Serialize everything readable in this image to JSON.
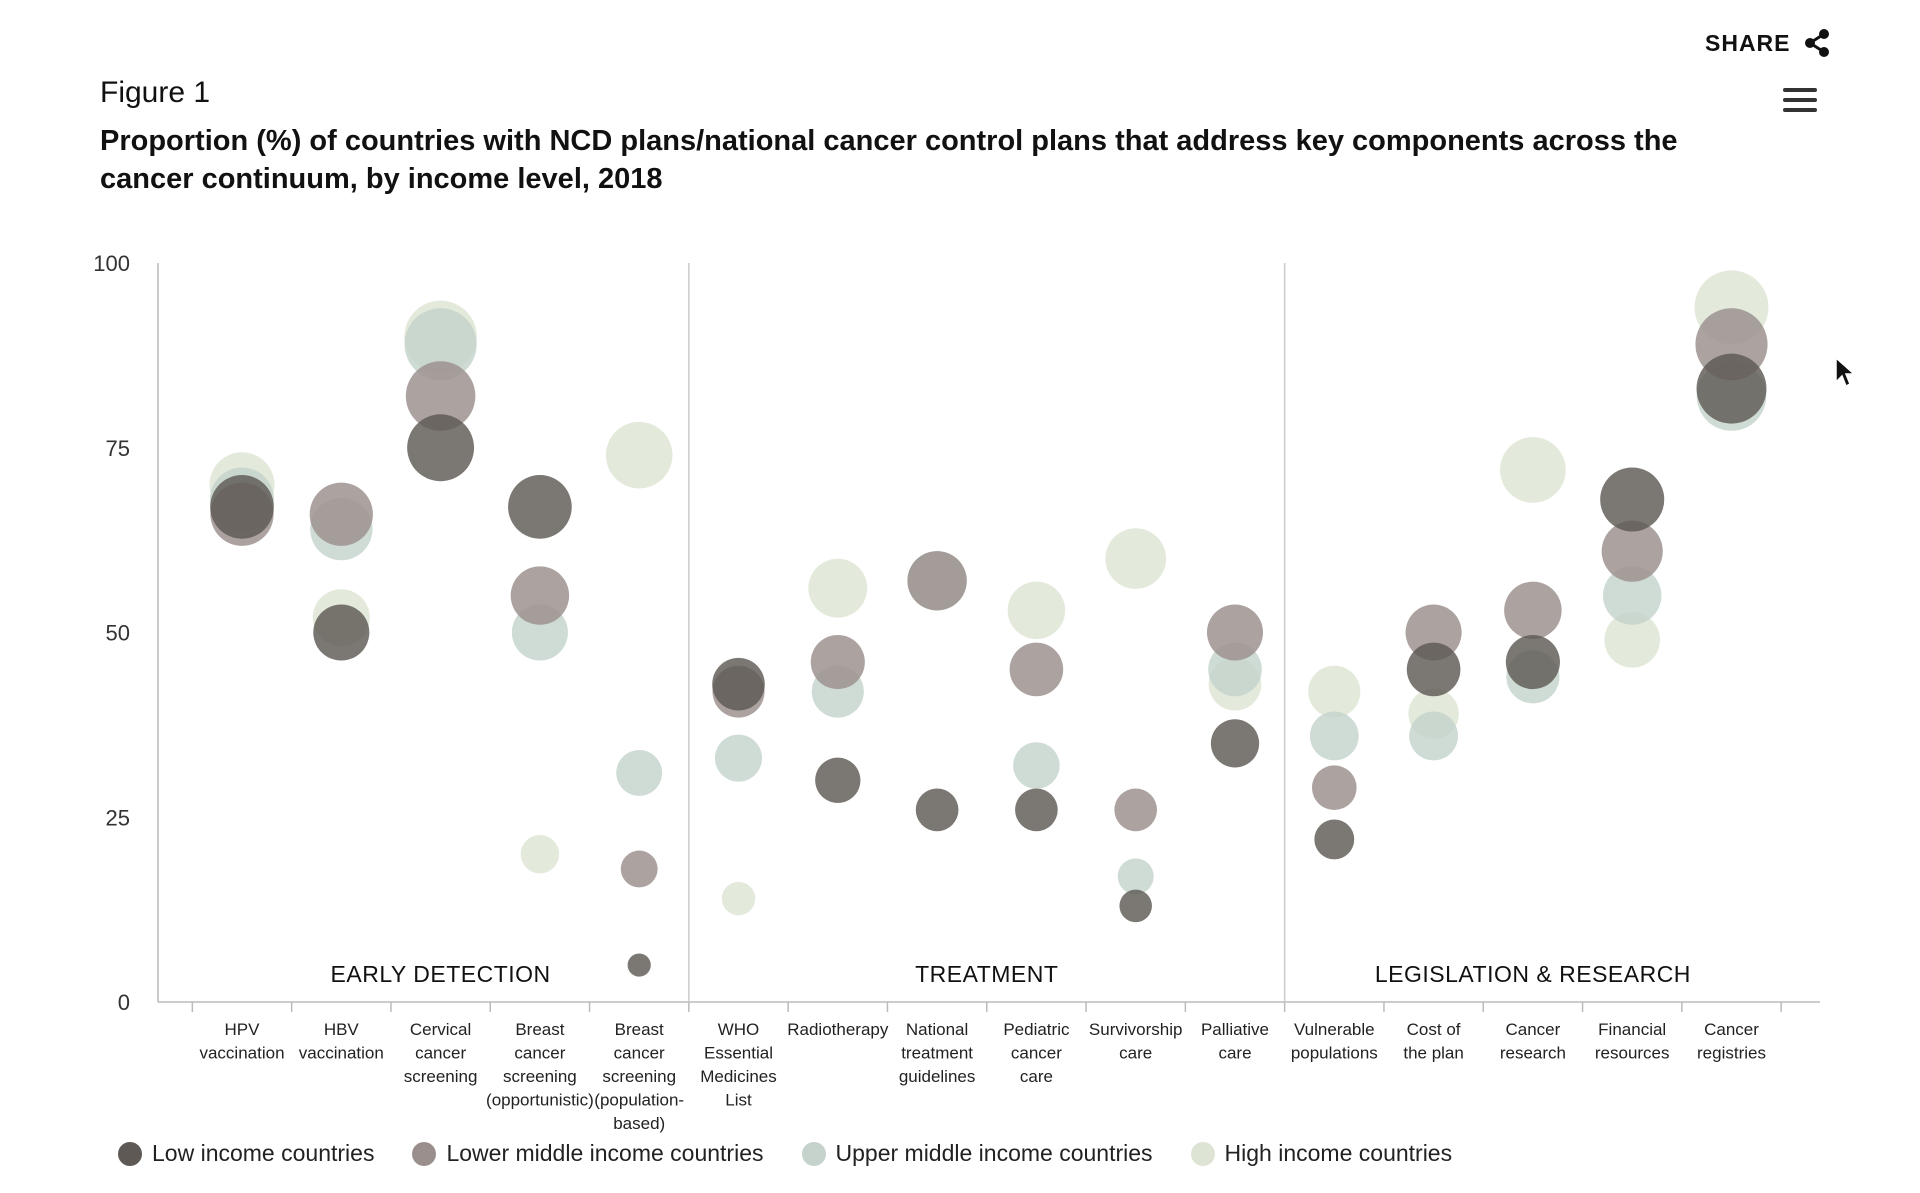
{
  "share": {
    "label": "SHARE",
    "icon": "share-icon"
  },
  "menu": {
    "icon": "hamburger-menu-icon"
  },
  "figure_label": "Figure 1",
  "colors": {
    "low": "#5e5954",
    "lower_middle": "#9a8f8c",
    "upper_middle": "#c5d3cc",
    "high": "#dde4d3"
  },
  "chart_data": {
    "type": "scatter",
    "title": "Proportion (%) of countries with NCD plans/national cancer control plans that address key components across the cancer continuum, by income level, 2018",
    "ylim": [
      0,
      100
    ],
    "yticks": [
      0,
      25,
      50,
      75,
      100
    ],
    "categories": [
      "HPV vaccination",
      "HBV vaccination",
      "Cervical cancer screening",
      "Breast cancer screening (opportunistic)",
      "Breast cancer screening (population-based)",
      "WHO Essential Medicines List",
      "Radiotherapy",
      "National treatment guidelines",
      "Pediatric cancer care",
      "Survivorship care",
      "Palliative care",
      "Vulnerable populations",
      "Cost of the plan",
      "Cancer research",
      "Financial resources",
      "Cancer registries"
    ],
    "category_label_lines": [
      [
        "HPV",
        "vaccination"
      ],
      [
        "HBV",
        "vaccination"
      ],
      [
        "Cervical",
        "cancer",
        "screening"
      ],
      [
        "Breast",
        "cancer",
        "screening",
        "(opportunistic)"
      ],
      [
        "Breast",
        "cancer",
        "screening",
        "(population-",
        "based)"
      ],
      [
        "WHO",
        "Essential",
        "Medicines",
        "List"
      ],
      [
        "Radiotherapy"
      ],
      [
        "National",
        "treatment",
        "guidelines"
      ],
      [
        "Pediatric",
        "cancer",
        "care"
      ],
      [
        "Survivorship",
        "care"
      ],
      [
        "Palliative",
        "care"
      ],
      [
        "Vulnerable",
        "populations"
      ],
      [
        "Cost of",
        "the plan"
      ],
      [
        "Cancer",
        "research"
      ],
      [
        "Financial",
        "resources"
      ],
      [
        "Cancer",
        "registries"
      ]
    ],
    "groups": [
      {
        "label": "EARLY DETECTION",
        "start": 0,
        "end": 4
      },
      {
        "label": "TREATMENT",
        "start": 5,
        "end": 10
      },
      {
        "label": "LEGISLATION & RESEARCH",
        "start": 11,
        "end": 15
      }
    ],
    "series": [
      {
        "name": "Low income countries",
        "color_key": "low",
        "values": [
          67,
          50,
          75,
          67,
          5,
          43,
          30,
          26,
          26,
          13,
          35,
          22,
          45,
          46,
          68,
          83
        ]
      },
      {
        "name": "Lower middle income countries",
        "color_key": "lower_middle",
        "values": [
          66,
          66,
          82,
          55,
          18,
          42,
          46,
          57,
          45,
          26,
          50,
          29,
          50,
          53,
          61,
          89
        ]
      },
      {
        "name": "Upper middle income countries",
        "color_key": "upper_middle",
        "values": [
          68,
          64,
          89,
          50,
          31,
          33,
          42,
          57,
          32,
          17,
          45,
          36,
          36,
          44,
          55,
          82
        ]
      },
      {
        "name": "High income countries",
        "color_key": "high",
        "values": [
          70,
          52,
          90,
          20,
          74,
          14,
          56,
          57,
          53,
          60,
          43,
          42,
          39,
          72,
          49,
          94
        ]
      }
    ]
  }
}
